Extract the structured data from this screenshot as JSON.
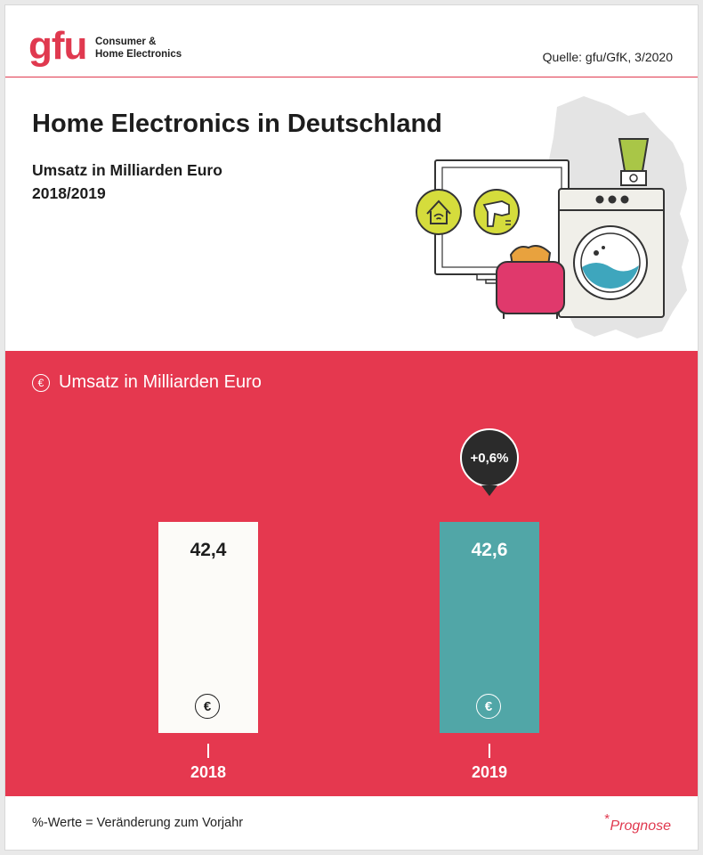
{
  "header": {
    "logo_text": "gfu",
    "logo_line1": "Consumer &",
    "logo_line2": "Home Electronics",
    "source": "Quelle: gfu/GfK, 3/2020"
  },
  "title": "Home Electronics in Deutschland",
  "subtitle_line1": "Umsatz in Milliarden Euro",
  "subtitle_line2": "2018/2019",
  "section_label": "Umsatz in Milliarden Euro",
  "euro_symbol": "€",
  "change_label": "+0,6%",
  "footer": {
    "note": "%-Werte = Veränderung zum Vorjahr",
    "asterisk": "*",
    "prognose": "Prognose"
  },
  "colors": {
    "brand_red": "#e5384f",
    "bar_2018": "#fcfbf8",
    "bar_2019": "#51a6a7"
  },
  "icons": [
    "euro-icon",
    "smart-home-icon",
    "hair-dryer-icon",
    "tv-icon",
    "washing-machine-icon",
    "toaster-icon",
    "blender-icon",
    "germany-map-icon"
  ],
  "chart_data": {
    "type": "bar",
    "categories": [
      "2018",
      "2019"
    ],
    "values": [
      42.4,
      42.6
    ],
    "value_labels": [
      "42,4",
      "42,6"
    ],
    "ylabel": "Umsatz in Milliarden Euro",
    "change": "+0,6%"
  }
}
